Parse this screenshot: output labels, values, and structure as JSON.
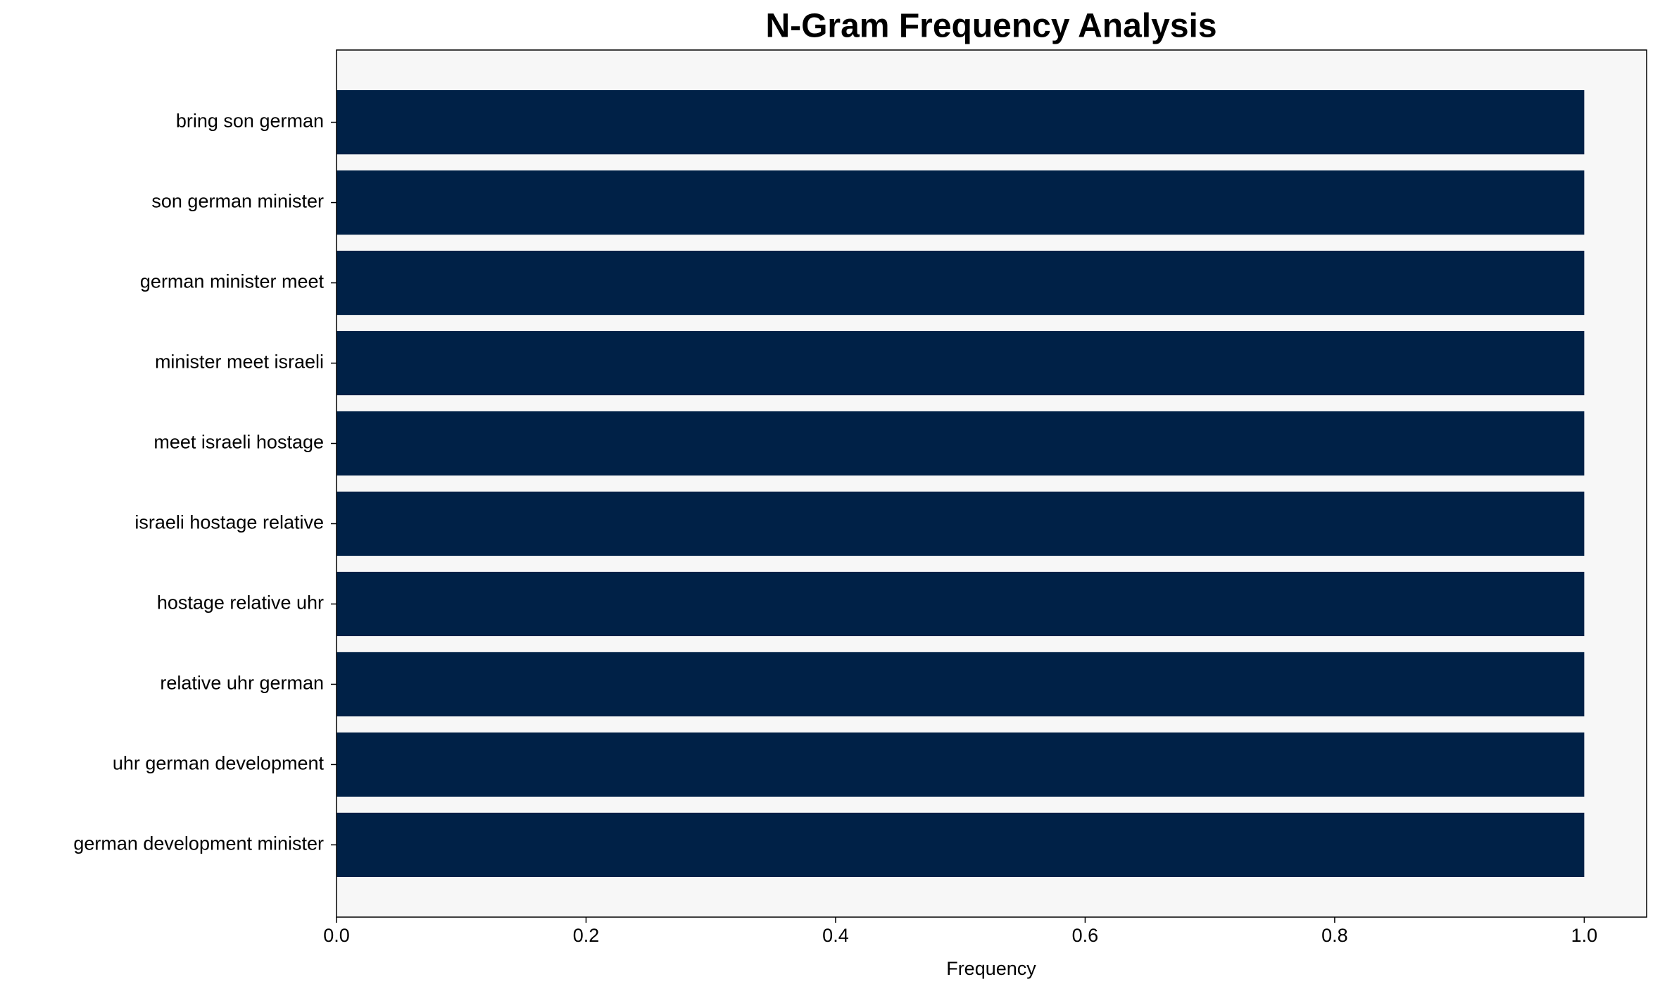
{
  "chart_data": {
    "type": "bar",
    "orientation": "horizontal",
    "title": "N-Gram Frequency Analysis",
    "x_label": "Frequency",
    "categories": [
      "bring son german",
      "son german minister",
      "german minister meet",
      "minister meet israeli",
      "meet israeli hostage",
      "israeli hostage relative",
      "hostage relative uhr",
      "relative uhr german",
      "uhr german development",
      "german development minister"
    ],
    "values": [
      1,
      1,
      1,
      1,
      1,
      1,
      1,
      1,
      1,
      1
    ],
    "color": "#002147",
    "plot_background": "#f7f7f7",
    "xlim": [
      0,
      1.05
    ],
    "xticks": [
      {
        "value": 0,
        "label": "0.0"
      },
      0.2,
      0.4,
      0.6,
      0.8,
      {
        "value": 1,
        "label": "1.0"
      }
    ],
    "grid": false
  }
}
